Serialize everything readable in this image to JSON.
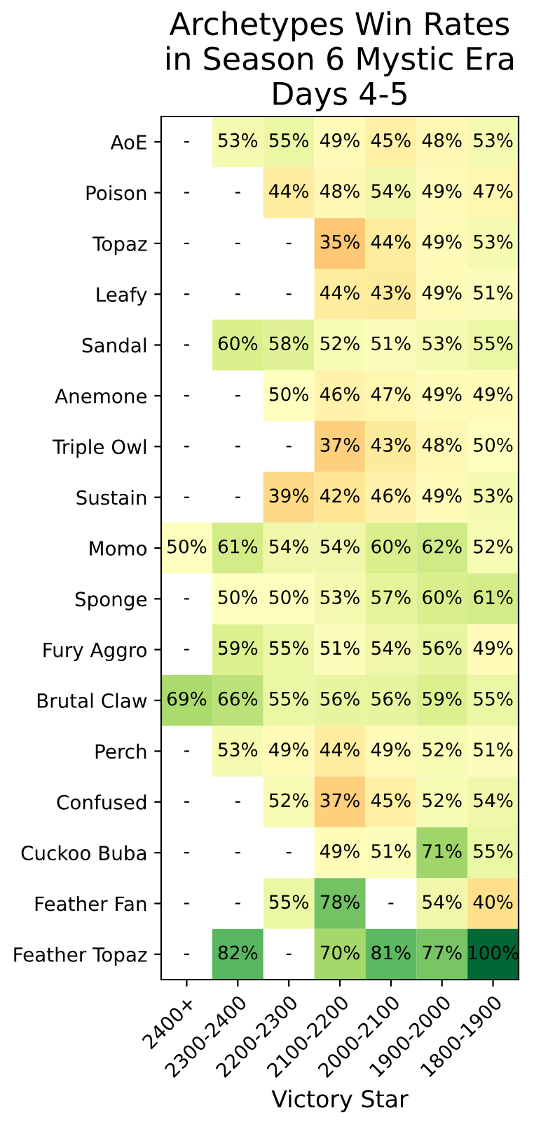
{
  "chart_data": {
    "type": "heatmap",
    "title": "Archetypes Win Rates\nin Season 6 Mystic Era\nDays 4-5",
    "xlabel": "Victory Star",
    "categories": [
      "2400+",
      "2300-2400",
      "2200-2300",
      "2100-2200",
      "2000-2100",
      "1900-2000",
      "1800-1900"
    ],
    "y_categories": [
      "AoE",
      "Poison",
      "Topaz",
      "Leafy",
      "Sandal",
      "Anemone",
      "Triple Owl",
      "Sustain",
      "Momo",
      "Sponge",
      "Fury Aggro",
      "Brutal Claw",
      "Perch",
      "Confused",
      "Cuckoo Buba",
      "Feather Fan",
      "Feather Topaz"
    ],
    "cells": [
      [
        null,
        53,
        55,
        49,
        45,
        48,
        53
      ],
      [
        null,
        null,
        44,
        48,
        54,
        49,
        47
      ],
      [
        null,
        null,
        null,
        35,
        44,
        49,
        53
      ],
      [
        null,
        null,
        null,
        44,
        43,
        49,
        51
      ],
      [
        null,
        60,
        58,
        52,
        51,
        53,
        55
      ],
      [
        null,
        null,
        50,
        46,
        47,
        49,
        49
      ],
      [
        null,
        null,
        null,
        37,
        43,
        48,
        50
      ],
      [
        null,
        null,
        39,
        42,
        46,
        49,
        53
      ],
      [
        50,
        61,
        54,
        54,
        60,
        62,
        52
      ],
      [
        null,
        50,
        50,
        53,
        57,
        60,
        61
      ],
      [
        null,
        59,
        55,
        51,
        54,
        56,
        49
      ],
      [
        69,
        66,
        55,
        56,
        56,
        59,
        55
      ],
      [
        null,
        53,
        49,
        44,
        49,
        52,
        51
      ],
      [
        null,
        null,
        52,
        37,
        45,
        52,
        54
      ],
      [
        null,
        null,
        null,
        49,
        51,
        71,
        55
      ],
      [
        null,
        null,
        55,
        78,
        null,
        54,
        40
      ],
      [
        null,
        82,
        null,
        70,
        81,
        77,
        100
      ]
    ],
    "cell_labels": [
      [
        "-",
        "53%",
        "55%",
        "49%",
        "45%",
        "48%",
        "53%"
      ],
      [
        "-",
        "-",
        "44%",
        "48%",
        "54%",
        "49%",
        "47%"
      ],
      [
        "-",
        "-",
        "-",
        "35%",
        "44%",
        "49%",
        "53%"
      ],
      [
        "-",
        "-",
        "-",
        "44%",
        "43%",
        "49%",
        "51%"
      ],
      [
        "-",
        "60%",
        "58%",
        "52%",
        "51%",
        "53%",
        "55%"
      ],
      [
        "-",
        "-",
        "50%",
        "46%",
        "47%",
        "49%",
        "49%"
      ],
      [
        "-",
        "-",
        "-",
        "37%",
        "43%",
        "48%",
        "50%"
      ],
      [
        "-",
        "-",
        "39%",
        "42%",
        "46%",
        "49%",
        "53%"
      ],
      [
        "50%",
        "61%",
        "54%",
        "54%",
        "60%",
        "62%",
        "52%"
      ],
      [
        "-",
        "50%",
        "50%",
        "53%",
        "57%",
        "60%",
        "61%"
      ],
      [
        "-",
        "59%",
        "55%",
        "51%",
        "54%",
        "56%",
        "49%"
      ],
      [
        "69%",
        "66%",
        "55%",
        "56%",
        "56%",
        "59%",
        "55%"
      ],
      [
        "-",
        "53%",
        "49%",
        "44%",
        "49%",
        "52%",
        "51%"
      ],
      [
        "-",
        "-",
        "52%",
        "37%",
        "45%",
        "52%",
        "54%"
      ],
      [
        "-",
        "-",
        "-",
        "49%",
        "51%",
        "71%",
        "55%"
      ],
      [
        "-",
        "-",
        "55%",
        "78%",
        "-",
        "54%",
        "40%"
      ],
      [
        "-",
        "82%",
        "-",
        "70%",
        "81%",
        "77%",
        "100%"
      ]
    ]
  }
}
